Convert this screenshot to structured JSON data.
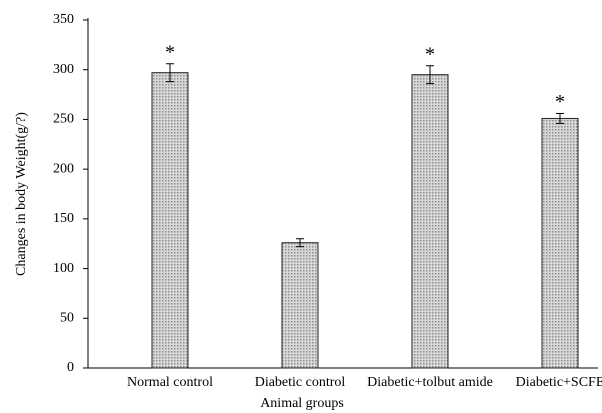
{
  "chart_data": {
    "type": "bar",
    "categories": [
      "Normal control",
      "Diabetic control",
      "Diabetic+tolbut amide",
      "Diabetic+SCFE"
    ],
    "values": [
      297,
      126,
      295,
      251
    ],
    "errors": [
      9,
      4,
      9,
      5
    ],
    "annotations": [
      "*",
      null,
      "*",
      "*"
    ],
    "color": "#8f8f8f",
    "ylim": [
      0,
      350
    ],
    "yticks": [
      0,
      50,
      100,
      150,
      200,
      250,
      300,
      350
    ],
    "xlabel": "Animal groups",
    "ylabel": "Changes  in body Weight(g/?)",
    "grid": false
  }
}
